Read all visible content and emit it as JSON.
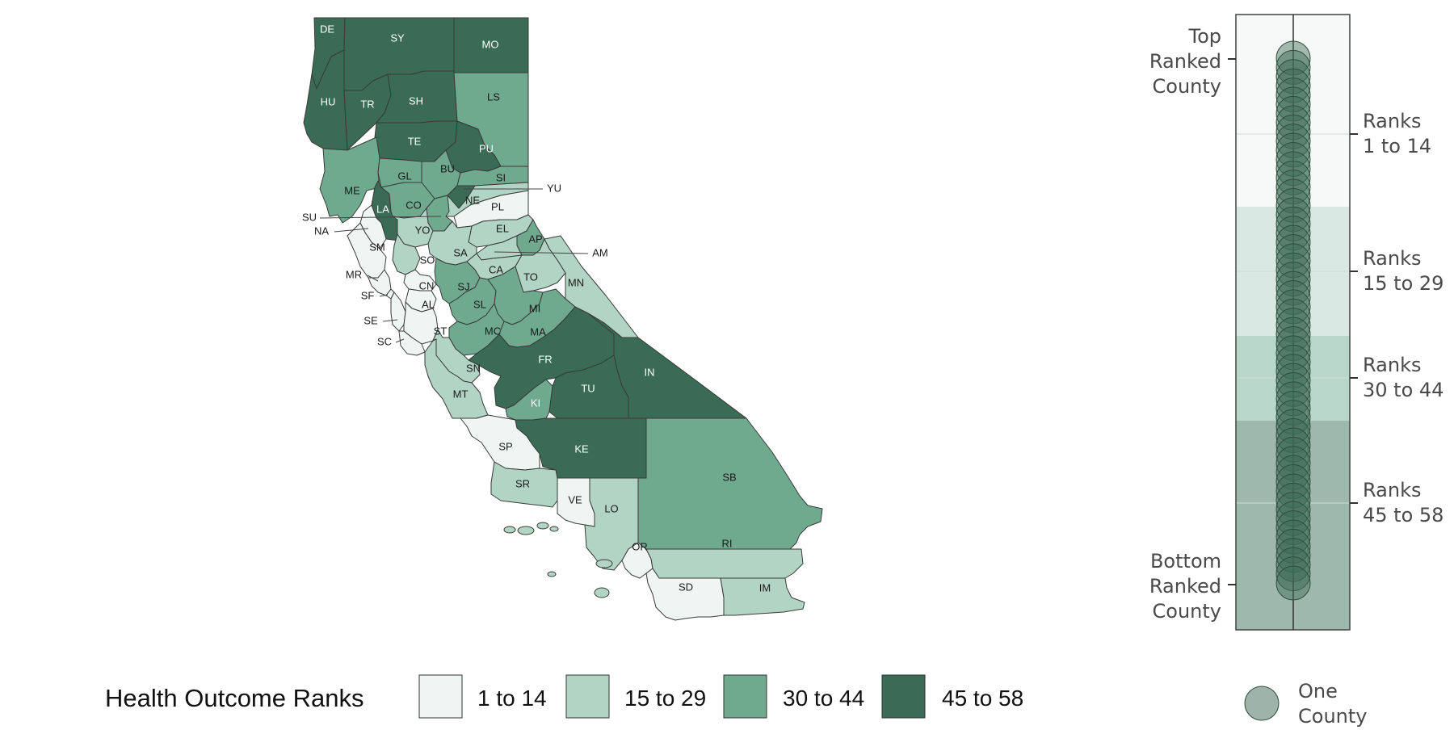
{
  "colors": {
    "band_1": "#eff5f2",
    "band_2": "#b2d4c5",
    "band_3": "#6faa8f",
    "band_4": "#3a6b54",
    "strip_band_1": "#f6f9f8",
    "strip_band_2": "#d9e8e2",
    "strip_band_3": "#b9d6ca",
    "strip_band_4": "#9fb8ad",
    "dot": "#3d6a55"
  },
  "map": {
    "counties": [
      {
        "abbr": "DE",
        "rank_band": 4
      },
      {
        "abbr": "SY",
        "rank_band": 4
      },
      {
        "abbr": "MO",
        "rank_band": 4
      },
      {
        "abbr": "HU",
        "rank_band": 4
      },
      {
        "abbr": "TR",
        "rank_band": 4
      },
      {
        "abbr": "SH",
        "rank_band": 4
      },
      {
        "abbr": "LS",
        "rank_band": 3
      },
      {
        "abbr": "TE",
        "rank_band": 4
      },
      {
        "abbr": "PU",
        "rank_band": 4
      },
      {
        "abbr": "ME",
        "rank_band": 3
      },
      {
        "abbr": "GL",
        "rank_band": 3
      },
      {
        "abbr": "BU",
        "rank_band": 3
      },
      {
        "abbr": "SI",
        "rank_band": 3
      },
      {
        "abbr": "YU",
        "rank_band": 4
      },
      {
        "abbr": "LA",
        "rank_band": 4
      },
      {
        "abbr": "CO",
        "rank_band": 3
      },
      {
        "abbr": "NE",
        "rank_band": 2
      },
      {
        "abbr": "PL",
        "rank_band": 1
      },
      {
        "abbr": "SU",
        "rank_band": 3
      },
      {
        "abbr": "NA",
        "rank_band": 1
      },
      {
        "abbr": "YO",
        "rank_band": 2
      },
      {
        "abbr": "EL",
        "rank_band": 2
      },
      {
        "abbr": "AP",
        "rank_band": 3
      },
      {
        "abbr": "AM",
        "rank_band": 2
      },
      {
        "abbr": "SM",
        "rank_band": 1
      },
      {
        "abbr": "SO",
        "rank_band": 2
      },
      {
        "abbr": "SA",
        "rank_band": 2
      },
      {
        "abbr": "CA",
        "rank_band": 2
      },
      {
        "abbr": "TO",
        "rank_band": 2
      },
      {
        "abbr": "MN",
        "rank_band": 2
      },
      {
        "abbr": "MR",
        "rank_band": 1
      },
      {
        "abbr": "CN",
        "rank_band": 1
      },
      {
        "abbr": "SJ",
        "rank_band": 3
      },
      {
        "abbr": "SF",
        "rank_band": 1
      },
      {
        "abbr": "AL",
        "rank_band": 1
      },
      {
        "abbr": "SL",
        "rank_band": 3
      },
      {
        "abbr": "MI",
        "rank_band": 3
      },
      {
        "abbr": "SE",
        "rank_band": 1
      },
      {
        "abbr": "ST",
        "rank_band": 1
      },
      {
        "abbr": "MC",
        "rank_band": 3
      },
      {
        "abbr": "MA",
        "rank_band": 3
      },
      {
        "abbr": "SC",
        "rank_band": 1
      },
      {
        "abbr": "FR",
        "rank_band": 4
      },
      {
        "abbr": "IN",
        "rank_band": 4
      },
      {
        "abbr": "SN",
        "rank_band": 2
      },
      {
        "abbr": "MT",
        "rank_band": 2
      },
      {
        "abbr": "TU",
        "rank_band": 4
      },
      {
        "abbr": "KI",
        "rank_band": 3
      },
      {
        "abbr": "SP",
        "rank_band": 1
      },
      {
        "abbr": "KE",
        "rank_band": 4
      },
      {
        "abbr": "SB",
        "rank_band": 3
      },
      {
        "abbr": "SR",
        "rank_band": 2
      },
      {
        "abbr": "VE",
        "rank_band": 1
      },
      {
        "abbr": "LO",
        "rank_band": 2
      },
      {
        "abbr": "OR",
        "rank_band": 1
      },
      {
        "abbr": "RI",
        "rank_band": 2
      },
      {
        "abbr": "SD",
        "rank_band": 1
      },
      {
        "abbr": "IM",
        "rank_band": 2
      }
    ]
  },
  "rank_strip": {
    "top_label": [
      "Top",
      "Ranked",
      "County"
    ],
    "bottom_label": [
      "Bottom",
      "Ranked",
      "County"
    ],
    "bands": [
      {
        "label": [
          "Ranks",
          "1 to 14"
        ]
      },
      {
        "label": [
          "Ranks",
          "15 to 29"
        ]
      },
      {
        "label": [
          "Ranks",
          "30 to 44"
        ]
      },
      {
        "label": [
          "Ranks",
          "45 to 58"
        ]
      }
    ],
    "county_ranks": [
      1,
      2,
      3,
      4,
      5,
      6,
      7,
      8,
      9,
      10,
      11,
      12,
      13,
      14,
      15,
      16,
      17,
      18,
      19,
      20,
      21,
      22,
      23,
      24,
      25,
      26,
      27,
      28,
      29,
      30,
      31,
      32,
      33,
      34,
      35,
      36,
      37,
      38,
      39,
      40,
      41,
      42,
      43,
      44,
      45,
      46,
      47,
      48,
      49,
      50,
      51,
      52,
      53,
      54,
      55,
      56,
      57,
      58
    ],
    "rank_max": 58
  },
  "legend": {
    "title": "Health Outcome Ranks",
    "items": [
      {
        "label": "1 to 14",
        "band": 1
      },
      {
        "label": "15 to 29",
        "band": 2
      },
      {
        "label": "30 to 44",
        "band": 3
      },
      {
        "label": "45 to 58",
        "band": 4
      }
    ],
    "dot_label": [
      "One",
      "County"
    ]
  }
}
